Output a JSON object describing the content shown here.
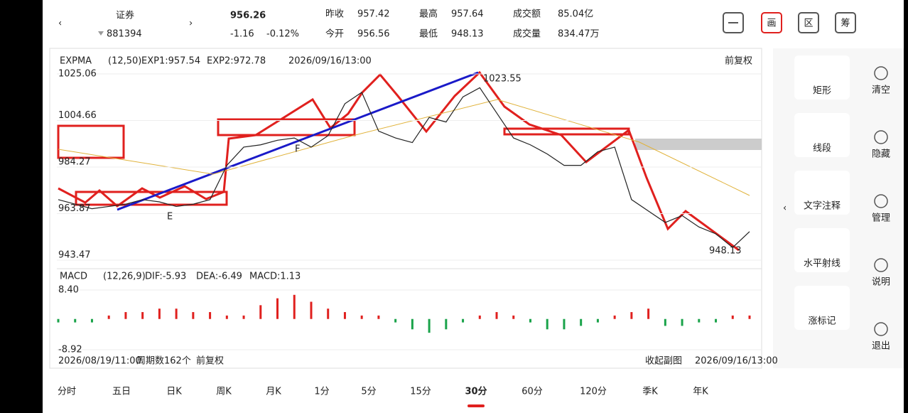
{
  "header": {
    "name": "证券",
    "code": "881394",
    "price": "956.26",
    "change": "-1.16",
    "change_pct": "-0.12%",
    "stats": [
      {
        "label": "昨收",
        "value": "957.42"
      },
      {
        "label": "今开",
        "value": "956.56"
      },
      {
        "label": "最高",
        "value": "957.64"
      },
      {
        "label": "最低",
        "value": "948.13"
      },
      {
        "label": "成交额",
        "value": "85.04亿"
      },
      {
        "label": "成交量",
        "value": "834.47万"
      }
    ],
    "icons": [
      "画",
      "区",
      "筹"
    ]
  },
  "chart_data": [
    {
      "type": "line",
      "indicator": "EXPMA",
      "params": "(12,50)",
      "exp1": "EXP1:957.54",
      "exp2": "EXP2:972.78",
      "date": "2026/09/16/13:00",
      "adjust": "前复权",
      "ylim": [
        943.47,
        1025.06
      ],
      "yticks": [
        1025.06,
        1004.66,
        984.27,
        963.87,
        943.47
      ],
      "high_label": "1023.55",
      "low_label": "948.13",
      "annotations": [
        "E",
        "F"
      ],
      "series": [
        {
          "color": "#222222",
          "values": [
            970,
            968,
            966,
            967,
            968,
            970,
            969,
            967,
            968,
            970,
            985,
            993,
            994,
            996,
            997,
            993,
            998,
            1012,
            1017,
            1000,
            997,
            995,
            1006,
            1004,
            1015,
            1019,
            1008,
            997,
            994,
            990,
            985,
            985,
            991,
            993,
            970,
            965,
            960,
            963,
            958,
            955,
            949,
            956
          ]
        }
      ]
    },
    {
      "type": "bar",
      "indicator": "MACD",
      "params": "(12,26,9)",
      "dif": "DIF:-5.93",
      "dea": "DEA:-6.49",
      "macd": "MACD:1.13",
      "ylim": [
        -8.92,
        8.4
      ],
      "yticks": [
        {
          "value": 8.4,
          "label": "8.40"
        },
        -8.92
      ],
      "values": [
        -1,
        -1,
        -1,
        1,
        2,
        2,
        3,
        3,
        2,
        2,
        1,
        1,
        4,
        6,
        7,
        5,
        3,
        2,
        1,
        1,
        -1,
        -3,
        -4,
        -3,
        -1,
        1,
        2,
        1,
        -1,
        -3,
        -3,
        -2,
        -1,
        1,
        2,
        3,
        -2,
        -2,
        -1,
        -1,
        1,
        1
      ]
    }
  ],
  "footer": {
    "start": "2026/08/19/11:00",
    "count": "周期数162个",
    "adjust": "前复权",
    "collapse": "收起副图",
    "end": "2026/09/16/13:00"
  },
  "tabs": [
    "分时",
    "五日",
    "日K",
    "周K",
    "月K",
    "1分",
    "5分",
    "15分",
    "30分",
    "60分",
    "120分",
    "季K",
    "年K"
  ],
  "active_tab": 8,
  "tools": [
    "矩形",
    "线段",
    "文字注释",
    "水平射线",
    "涨标记"
  ],
  "side": [
    "清空",
    "隐藏",
    "管理",
    "说明",
    "退出"
  ]
}
